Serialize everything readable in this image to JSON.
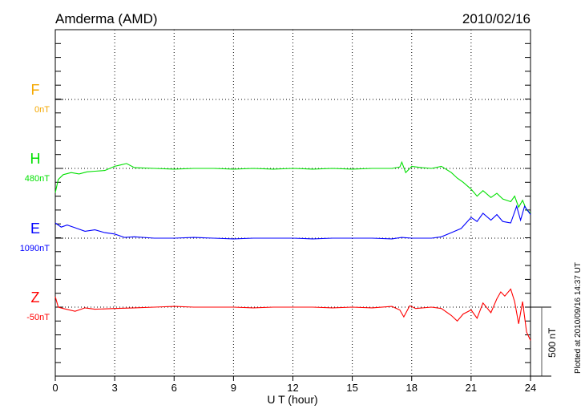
{
  "chart_data": {
    "type": "line",
    "title": "Amderma (AMD)",
    "date": "2010/02/16",
    "xlabel": "U T (hour)",
    "xlim": [
      0,
      24
    ],
    "x_ticks": [
      "0",
      "3",
      "6",
      "9",
      "12",
      "15",
      "18",
      "21",
      "24"
    ],
    "scale_label": "500 nT",
    "scale_nT": 500,
    "footer": "Plotted at 2010/09/16 14:37 UT",
    "grid": "dotted",
    "series": [
      {
        "name": "F",
        "baseline_label": "0nT",
        "color": "#f5a800",
        "x": [],
        "values": []
      },
      {
        "name": "H",
        "baseline_label": "480nT",
        "color": "#00e000",
        "x": [
          0,
          0.15,
          0.4,
          0.8,
          1.2,
          1.6,
          2,
          2.5,
          3,
          3.3,
          3.6,
          4,
          5,
          6,
          7,
          8,
          9,
          10,
          11,
          12,
          13,
          14,
          15,
          16,
          17,
          17.4,
          17.5,
          17.7,
          18,
          18.5,
          19,
          19.5,
          20,
          20.3,
          20.6,
          21,
          21.3,
          21.6,
          22,
          22.3,
          22.6,
          23,
          23.2,
          23.4,
          23.6,
          23.8,
          24
        ],
        "values": [
          -175,
          -80,
          -45,
          -30,
          -40,
          -25,
          -20,
          -15,
          15,
          25,
          35,
          5,
          0,
          -5,
          0,
          0,
          -5,
          0,
          -5,
          0,
          -5,
          0,
          -5,
          0,
          0,
          10,
          45,
          -30,
          15,
          5,
          0,
          15,
          -30,
          -70,
          -100,
          -150,
          -200,
          -160,
          -210,
          -180,
          -220,
          -240,
          -200,
          -280,
          -230,
          -300,
          -320
        ]
      },
      {
        "name": "E",
        "baseline_label": "1090nT",
        "color": "#0000ff",
        "x": [
          0,
          0.3,
          0.6,
          1,
          1.5,
          2,
          2.5,
          3,
          3.5,
          4,
          5,
          6,
          7,
          8,
          9,
          10,
          11,
          12,
          13,
          14,
          15,
          16,
          17,
          17.5,
          18,
          19,
          19.5,
          20,
          20.5,
          21,
          21.3,
          21.6,
          22,
          22.3,
          22.6,
          23,
          23.3,
          23.5,
          23.7,
          24
        ],
        "values": [
          110,
          80,
          95,
          75,
          50,
          60,
          40,
          30,
          5,
          10,
          0,
          0,
          5,
          0,
          -5,
          0,
          0,
          0,
          -5,
          0,
          0,
          0,
          -5,
          5,
          0,
          0,
          10,
          40,
          70,
          150,
          120,
          180,
          130,
          170,
          120,
          110,
          230,
          130,
          230,
          170
        ]
      },
      {
        "name": "Z",
        "baseline_label": "-50nT",
        "color": "#ff0000",
        "x": [
          0,
          0.15,
          0.4,
          1,
          1.5,
          2,
          3,
          4,
          5,
          6,
          7,
          8,
          9,
          10,
          11,
          12,
          13,
          14,
          15,
          16,
          17,
          17.4,
          17.6,
          17.9,
          18.2,
          19,
          19.5,
          20,
          20.3,
          20.6,
          21,
          21.3,
          21.6,
          22,
          22.3,
          22.5,
          22.7,
          23,
          23.2,
          23.4,
          23.6,
          23.8,
          24
        ],
        "values": [
          75,
          0,
          -10,
          -30,
          -5,
          -15,
          -10,
          -5,
          0,
          5,
          0,
          0,
          0,
          -5,
          0,
          0,
          0,
          -5,
          0,
          -5,
          5,
          -20,
          -70,
          10,
          -10,
          0,
          -10,
          -60,
          -100,
          -50,
          -20,
          -80,
          30,
          -40,
          60,
          110,
          80,
          130,
          40,
          -120,
          40,
          -180,
          -240
        ]
      }
    ]
  }
}
